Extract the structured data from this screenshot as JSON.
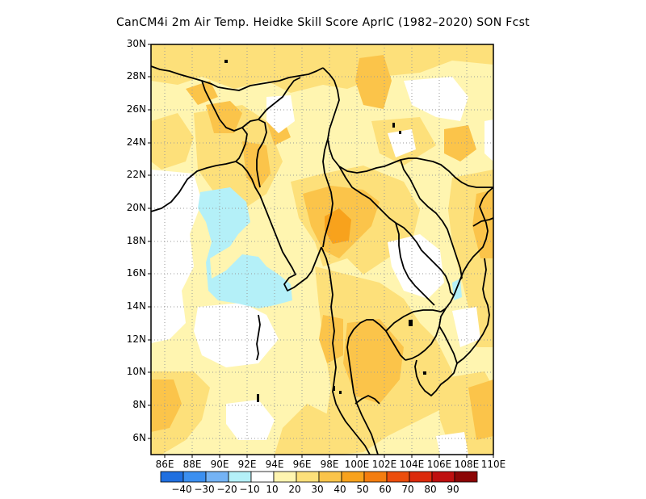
{
  "title": "CanCM4i  2m Air Temp. Heidke Skill Score AprIC (1982–2020) SON Fcst",
  "map": {
    "lon_range": [
      85,
      110
    ],
    "lat_range": [
      5,
      30
    ],
    "lat_ticks": [
      "30N",
      "28N",
      "26N",
      "24N",
      "22N",
      "20N",
      "18N",
      "16N",
      "14N",
      "12N",
      "10N",
      "8N",
      "6N"
    ],
    "lon_ticks": [
      "86E",
      "88E",
      "90E",
      "92E",
      "94E",
      "96E",
      "98E",
      "100E",
      "102E",
      "104E",
      "106E",
      "108E",
      "110E"
    ],
    "grid": "dotted"
  },
  "colorbar": {
    "labels": [
      "−40",
      "−30",
      "−20",
      "−10",
      "10",
      "20",
      "30",
      "40",
      "50",
      "60",
      "70",
      "80",
      "90"
    ],
    "colors": [
      "#1f6fe0",
      "#3b8ff0",
      "#74b3f5",
      "#b4f0f8",
      "#ffffff",
      "#fff5b0",
      "#fde07a",
      "#fbc44a",
      "#f8a21c",
      "#f47d0f",
      "#ec4d0c",
      "#dc2a0c",
      "#bf0f0f",
      "#8c0505"
    ]
  }
}
